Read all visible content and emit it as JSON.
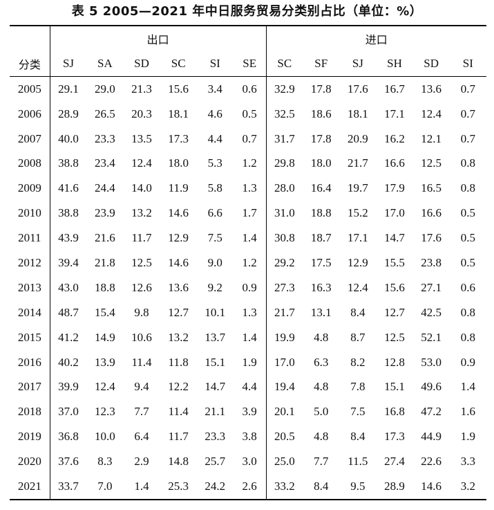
{
  "caption": "表 5   2005—2021 年中日服务贸易分类别占比（单位：%）",
  "row_header_label": "分类",
  "groups": [
    {
      "label": "出口",
      "columns": [
        "SJ",
        "SA",
        "SD",
        "SC",
        "SI",
        "SE"
      ]
    },
    {
      "label": "进口",
      "columns": [
        "SC",
        "SF",
        "SJ",
        "SH",
        "SD",
        "SI"
      ]
    }
  ],
  "rows": [
    {
      "year": "2005",
      "values": [
        "29.1",
        "29.0",
        "21.3",
        "15.6",
        "3.4",
        "0.6",
        "32.9",
        "17.8",
        "17.6",
        "16.7",
        "13.6",
        "0.7"
      ]
    },
    {
      "year": "2006",
      "values": [
        "28.9",
        "26.5",
        "20.3",
        "18.1",
        "4.6",
        "0.5",
        "32.5",
        "18.6",
        "18.1",
        "17.1",
        "12.4",
        "0.7"
      ]
    },
    {
      "year": "2007",
      "values": [
        "40.0",
        "23.3",
        "13.5",
        "17.3",
        "4.4",
        "0.7",
        "31.7",
        "17.8",
        "20.9",
        "16.2",
        "12.1",
        "0.7"
      ]
    },
    {
      "year": "2008",
      "values": [
        "38.8",
        "23.4",
        "12.4",
        "18.0",
        "5.3",
        "1.2",
        "29.8",
        "18.0",
        "21.7",
        "16.6",
        "12.5",
        "0.8"
      ]
    },
    {
      "year": "2009",
      "values": [
        "41.6",
        "24.4",
        "14.0",
        "11.9",
        "5.8",
        "1.3",
        "28.0",
        "16.4",
        "19.7",
        "17.9",
        "16.5",
        "0.8"
      ]
    },
    {
      "year": "2010",
      "values": [
        "38.8",
        "23.9",
        "13.2",
        "14.6",
        "6.6",
        "1.7",
        "31.0",
        "18.8",
        "15.2",
        "17.0",
        "16.6",
        "0.5"
      ]
    },
    {
      "year": "2011",
      "values": [
        "43.9",
        "21.6",
        "11.7",
        "12.9",
        "7.5",
        "1.4",
        "30.8",
        "18.7",
        "17.1",
        "14.7",
        "17.6",
        "0.5"
      ]
    },
    {
      "year": "2012",
      "values": [
        "39.4",
        "21.8",
        "12.5",
        "14.6",
        "9.0",
        "1.2",
        "29.2",
        "17.5",
        "12.9",
        "15.5",
        "23.8",
        "0.5"
      ]
    },
    {
      "year": "2013",
      "values": [
        "43.0",
        "18.8",
        "12.6",
        "13.6",
        "9.2",
        "0.9",
        "27.3",
        "16.3",
        "12.4",
        "15.6",
        "27.1",
        "0.6"
      ]
    },
    {
      "year": "2014",
      "values": [
        "48.7",
        "15.4",
        "9.8",
        "12.7",
        "10.1",
        "1.3",
        "21.7",
        "13.1",
        "8.4",
        "12.7",
        "42.5",
        "0.8"
      ]
    },
    {
      "year": "2015",
      "values": [
        "41.2",
        "14.9",
        "10.6",
        "13.2",
        "13.7",
        "1.4",
        "19.9",
        "4.8",
        "8.7",
        "12.5",
        "52.1",
        "0.8"
      ]
    },
    {
      "year": "2016",
      "values": [
        "40.2",
        "13.9",
        "11.4",
        "11.8",
        "15.1",
        "1.9",
        "17.0",
        "6.3",
        "8.2",
        "12.8",
        "53.0",
        "0.9"
      ]
    },
    {
      "year": "2017",
      "values": [
        "39.9",
        "12.4",
        "9.4",
        "12.2",
        "14.7",
        "4.4",
        "19.4",
        "4.8",
        "7.8",
        "15.1",
        "49.6",
        "1.4"
      ]
    },
    {
      "year": "2018",
      "values": [
        "37.0",
        "12.3",
        "7.7",
        "11.4",
        "21.1",
        "3.9",
        "20.1",
        "5.0",
        "7.5",
        "16.8",
        "47.2",
        "1.6"
      ]
    },
    {
      "year": "2019",
      "values": [
        "36.8",
        "10.0",
        "6.4",
        "11.7",
        "23.3",
        "3.8",
        "20.5",
        "4.8",
        "8.4",
        "17.3",
        "44.9",
        "1.9"
      ]
    },
    {
      "year": "2020",
      "values": [
        "37.6",
        "8.3",
        "2.9",
        "14.8",
        "25.7",
        "3.0",
        "25.0",
        "7.7",
        "11.5",
        "27.4",
        "22.6",
        "3.3"
      ]
    },
    {
      "year": "2021",
      "values": [
        "33.7",
        "7.0",
        "1.4",
        "25.3",
        "24.2",
        "2.6",
        "33.2",
        "8.4",
        "9.5",
        "28.9",
        "14.6",
        "3.2"
      ]
    }
  ]
}
